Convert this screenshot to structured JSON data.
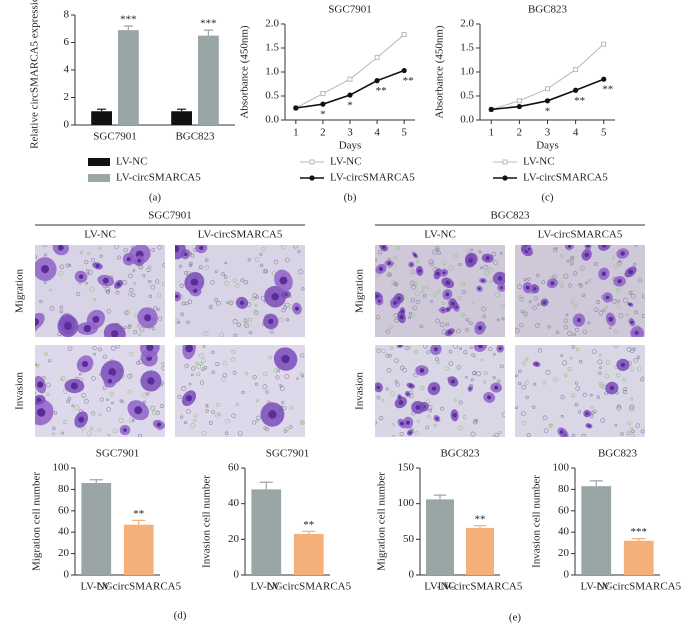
{
  "chart_data": [
    {
      "type": "bar",
      "panel_label": "(a)",
      "ylabel": "Relative circSMARCA5 expression",
      "categories": [
        "SGC7901",
        "BGC823"
      ],
      "series": [
        {
          "name": "LV-NC",
          "color": "#111111",
          "values": [
            1,
            1
          ],
          "errors": [
            0.15,
            0.15
          ]
        },
        {
          "name": "LV-circSMARCA5",
          "color": "#9aa6a6",
          "values": [
            6.9,
            6.5
          ],
          "errors": [
            0.3,
            0.4
          ],
          "annotations": [
            {
              "index": 0,
              "text": "***"
            },
            {
              "index": 1,
              "text": "***"
            }
          ]
        }
      ],
      "ylim": [
        0,
        8
      ],
      "yticks": [
        0,
        2,
        4,
        6,
        8
      ]
    },
    {
      "type": "line",
      "title": "SGC7901",
      "panel_label": "(b)",
      "ylabel": "Absorbance (450nm)",
      "xlabel": "Days",
      "x": [
        1,
        2,
        3,
        4,
        5
      ],
      "xlim": [
        0.6,
        5.4
      ],
      "xticks": [
        1,
        2,
        3,
        4,
        5
      ],
      "series": [
        {
          "name": "LV-NC",
          "color": "#b8b8b8",
          "values": [
            0.25,
            0.55,
            0.85,
            1.3,
            1.78
          ]
        },
        {
          "name": "LV-circSMARCA5",
          "color": "#111111",
          "values": [
            0.25,
            0.33,
            0.52,
            0.82,
            1.03
          ],
          "annotations": [
            {
              "index": 1,
              "text": "*"
            },
            {
              "index": 2,
              "text": "*"
            },
            {
              "index": 3,
              "text": "**"
            },
            {
              "index": 4,
              "text": "**"
            }
          ]
        }
      ],
      "ylim": [
        0,
        2
      ],
      "yticks": [
        {
          "value": 0,
          "label": "0.0"
        },
        0.5,
        {
          "value": 1,
          "label": "1.0"
        },
        1.5,
        {
          "value": 2,
          "label": "2.0"
        }
      ]
    },
    {
      "type": "line",
      "title": "BGC823",
      "panel_label": "(c)",
      "ylabel": "Absorbance (450nm)",
      "xlabel": "Days",
      "x": [
        1,
        2,
        3,
        4,
        5
      ],
      "xlim": [
        0.6,
        5.4
      ],
      "xticks": [
        1,
        2,
        3,
        4,
        5
      ],
      "series": [
        {
          "name": "LV-NC",
          "color": "#b8b8b8",
          "values": [
            0.22,
            0.4,
            0.65,
            1.05,
            1.58
          ]
        },
        {
          "name": "LV-circSMARCA5",
          "color": "#111111",
          "values": [
            0.22,
            0.28,
            0.4,
            0.62,
            0.85
          ],
          "annotations": [
            {
              "index": 2,
              "text": "*"
            },
            {
              "index": 3,
              "text": "**"
            },
            {
              "index": 4,
              "text": "**"
            }
          ]
        }
      ],
      "ylim": [
        0,
        2
      ],
      "yticks": [
        {
          "value": 0,
          "label": "0.0"
        },
        0.5,
        {
          "value": 1,
          "label": "1.0"
        },
        1.5,
        {
          "value": 2,
          "label": "2.0"
        }
      ]
    },
    {
      "type": "bar",
      "title": "SGC7901",
      "ylabel": "Migration cell number",
      "categories": [
        "LV-NC",
        "LV-circSMARCA5"
      ],
      "series": [
        {
          "colors": [
            "#9aa6a6",
            "#f5b07a"
          ],
          "values": [
            86,
            47
          ],
          "errors": [
            3,
            4
          ],
          "annotations": [
            {
              "index": 1,
              "text": "**"
            }
          ]
        }
      ],
      "ylim": [
        0,
        100
      ],
      "yticks": [
        0,
        20,
        40,
        60,
        80,
        100
      ]
    },
    {
      "type": "bar",
      "title": "SGC7901",
      "ylabel": "Invasion cell number",
      "categories": [
        "LV-NC",
        "LV-circSMARCA5"
      ],
      "series": [
        {
          "colors": [
            "#9aa6a6",
            "#f5b07a"
          ],
          "values": [
            48,
            23
          ],
          "errors": [
            4,
            1.5
          ],
          "annotations": [
            {
              "index": 1,
              "text": "**"
            }
          ]
        }
      ],
      "ylim": [
        0,
        60
      ],
      "yticks": [
        0,
        20,
        40,
        60
      ]
    },
    {
      "type": "bar",
      "title": "BGC823",
      "ylabel": "Migration cell number",
      "categories": [
        "LV-NC",
        "LV-circSMARCA5"
      ],
      "series": [
        {
          "colors": [
            "#9aa6a6",
            "#f5b07a"
          ],
          "values": [
            106,
            66
          ],
          "errors": [
            6,
            3
          ],
          "annotations": [
            {
              "index": 1,
              "text": "**"
            }
          ]
        }
      ],
      "ylim": [
        0,
        150
      ],
      "yticks": [
        0,
        50,
        100,
        150
      ]
    },
    {
      "type": "bar",
      "title": "BGC823",
      "ylabel": "Invasion cell number",
      "categories": [
        "LV-NC",
        "LV-circSMARCA5"
      ],
      "series": [
        {
          "colors": [
            "#9aa6a6",
            "#f5b07a"
          ],
          "values": [
            83,
            32
          ],
          "errors": [
            5,
            2
          ],
          "annotations": [
            {
              "index": 1,
              "text": "***"
            }
          ]
        }
      ],
      "ylim": [
        0,
        100
      ],
      "yticks": [
        0,
        20,
        40,
        60,
        80,
        100
      ]
    }
  ],
  "figure_labels": [
    "(d)",
    "(e)"
  ],
  "image_panels": [
    {
      "title": "SGC7901",
      "columns": [
        "LV-NC",
        "LV-circSMARCA5"
      ],
      "rows": [
        "Migration",
        "Invasion"
      ]
    },
    {
      "title": "BGC823",
      "columns": [
        "LV-NC",
        "LV-circSMARCA5"
      ],
      "rows": [
        "Migration",
        "Invasion"
      ]
    }
  ]
}
